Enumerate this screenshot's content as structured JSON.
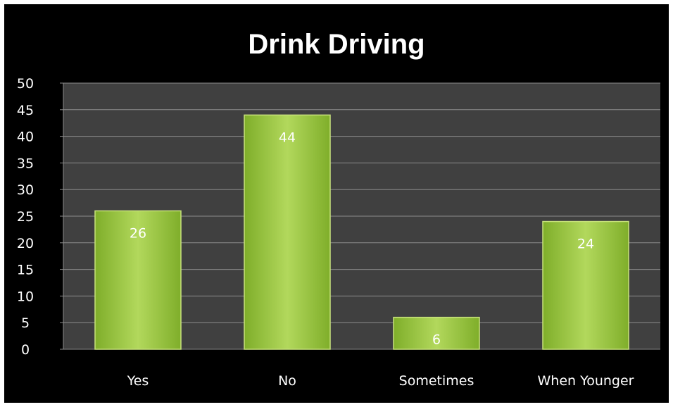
{
  "colors": {
    "background": "#000000",
    "plot_area": "#404040",
    "gridline": "#8c8c8c",
    "bar_fill": "#92c03a",
    "bar_highlight": "#c8e27c",
    "text": "#ffffff"
  },
  "chart_data": {
    "type": "bar",
    "title": "Drink Driving",
    "xlabel": "",
    "ylabel": "",
    "categories": [
      "Yes",
      "No",
      "Sometimes",
      "When Younger"
    ],
    "values": [
      26,
      44,
      6,
      24
    ],
    "ylim": [
      0,
      50
    ],
    "yticks": [
      "0",
      "5",
      "10",
      "15",
      "20",
      "25",
      "30",
      "35",
      "40",
      "45",
      "50"
    ],
    "grid": true,
    "legend": "none",
    "data_labels": true
  }
}
